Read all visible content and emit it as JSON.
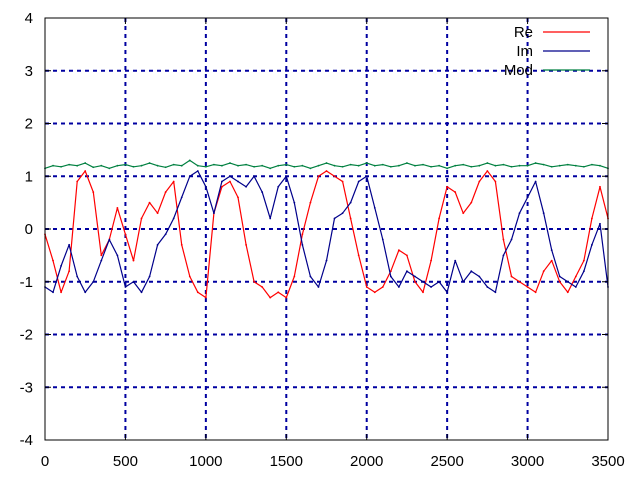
{
  "chart_data": {
    "type": "line",
    "title": "",
    "xlabel": "",
    "ylabel": "",
    "xlim": [
      0,
      3500
    ],
    "ylim": [
      -4,
      4
    ],
    "x_ticks": [
      "0",
      "500",
      "1000",
      "1500",
      "2000",
      "2500",
      "3000",
      "3500"
    ],
    "y_ticks": [
      "-4",
      "-3",
      "-2",
      "-1",
      "0",
      "1",
      "2",
      "3",
      "4"
    ],
    "grid": true,
    "legend_position": "top-right",
    "series": [
      {
        "name": "Re",
        "color": "#ff0000",
        "x": [
          0,
          50,
          100,
          150,
          200,
          250,
          300,
          350,
          400,
          450,
          500,
          550,
          600,
          650,
          700,
          750,
          800,
          850,
          900,
          950,
          1000,
          1050,
          1100,
          1150,
          1200,
          1250,
          1300,
          1350,
          1400,
          1450,
          1500,
          1550,
          1600,
          1650,
          1700,
          1750,
          1800,
          1850,
          1900,
          1950,
          2000,
          2050,
          2100,
          2150,
          2200,
          2250,
          2300,
          2350,
          2400,
          2450,
          2500,
          2550,
          2600,
          2650,
          2700,
          2750,
          2800,
          2850,
          2900,
          2950,
          3000,
          3050,
          3100,
          3150,
          3200,
          3250,
          3300,
          3350,
          3400,
          3450,
          3500
        ],
        "values": [
          -0.1,
          -0.6,
          -1.2,
          -0.8,
          0.9,
          1.1,
          0.7,
          -0.5,
          -0.2,
          0.4,
          -0.1,
          -0.6,
          0.2,
          0.5,
          0.3,
          0.7,
          0.9,
          -0.3,
          -0.9,
          -1.2,
          -1.3,
          0.3,
          0.8,
          0.9,
          0.6,
          -0.3,
          -1.0,
          -1.1,
          -1.3,
          -1.2,
          -1.3,
          -0.9,
          -0.1,
          0.5,
          1.0,
          1.1,
          1.0,
          0.9,
          0.2,
          -0.5,
          -1.1,
          -1.2,
          -1.1,
          -0.8,
          -0.4,
          -0.5,
          -1.0,
          -1.2,
          -0.6,
          0.2,
          0.8,
          0.7,
          0.3,
          0.5,
          0.9,
          1.1,
          0.9,
          -0.2,
          -0.9,
          -1.0,
          -1.1,
          -1.2,
          -0.8,
          -0.6,
          -1.0,
          -1.2,
          -0.9,
          -0.6,
          0.2,
          0.8,
          0.2
        ]
      },
      {
        "name": "Im",
        "color": "#00008b",
        "x": [
          0,
          50,
          100,
          150,
          200,
          250,
          300,
          350,
          400,
          450,
          500,
          550,
          600,
          650,
          700,
          750,
          800,
          850,
          900,
          950,
          1000,
          1050,
          1100,
          1150,
          1200,
          1250,
          1300,
          1350,
          1400,
          1450,
          1500,
          1550,
          1600,
          1650,
          1700,
          1750,
          1800,
          1850,
          1900,
          1950,
          2000,
          2050,
          2100,
          2150,
          2200,
          2250,
          2300,
          2350,
          2400,
          2450,
          2500,
          2550,
          2600,
          2650,
          2700,
          2750,
          2800,
          2850,
          2900,
          2950,
          3000,
          3050,
          3100,
          3150,
          3200,
          3250,
          3300,
          3350,
          3400,
          3450,
          3500
        ],
        "values": [
          -1.1,
          -1.2,
          -0.7,
          -0.3,
          -0.9,
          -1.2,
          -1.0,
          -0.6,
          -0.2,
          -0.5,
          -1.1,
          -1.0,
          -1.2,
          -0.9,
          -0.3,
          -0.1,
          0.2,
          0.6,
          1.0,
          1.1,
          0.8,
          0.3,
          0.9,
          1.0,
          0.9,
          0.8,
          1.0,
          0.7,
          0.2,
          0.8,
          1.0,
          0.5,
          -0.3,
          -0.9,
          -1.1,
          -0.6,
          0.2,
          0.3,
          0.5,
          0.9,
          1.0,
          0.4,
          -0.2,
          -0.9,
          -1.1,
          -0.8,
          -0.9,
          -1.0,
          -1.1,
          -1.0,
          -1.2,
          -0.6,
          -1.0,
          -0.8,
          -0.9,
          -1.1,
          -1.2,
          -0.5,
          -0.2,
          0.3,
          0.6,
          0.9,
          0.3,
          -0.4,
          -0.9,
          -1.0,
          -1.1,
          -0.8,
          -0.3,
          0.1,
          -1.1
        ]
      },
      {
        "name": "Mod",
        "color": "#008040",
        "x": [
          0,
          50,
          100,
          150,
          200,
          250,
          300,
          350,
          400,
          450,
          500,
          550,
          600,
          650,
          700,
          750,
          800,
          850,
          900,
          950,
          1000,
          1050,
          1100,
          1150,
          1200,
          1250,
          1300,
          1350,
          1400,
          1450,
          1500,
          1550,
          1600,
          1650,
          1700,
          1750,
          1800,
          1850,
          1900,
          1950,
          2000,
          2050,
          2100,
          2150,
          2200,
          2250,
          2300,
          2350,
          2400,
          2450,
          2500,
          2550,
          2600,
          2650,
          2700,
          2750,
          2800,
          2850,
          2900,
          2950,
          3000,
          3050,
          3100,
          3150,
          3200,
          3250,
          3300,
          3350,
          3400,
          3450,
          3500
        ],
        "values": [
          1.15,
          1.2,
          1.18,
          1.22,
          1.2,
          1.25,
          1.17,
          1.2,
          1.15,
          1.2,
          1.22,
          1.18,
          1.2,
          1.25,
          1.2,
          1.17,
          1.22,
          1.2,
          1.3,
          1.2,
          1.18,
          1.22,
          1.2,
          1.25,
          1.2,
          1.22,
          1.18,
          1.2,
          1.15,
          1.2,
          1.22,
          1.18,
          1.2,
          1.15,
          1.2,
          1.25,
          1.2,
          1.18,
          1.22,
          1.2,
          1.25,
          1.2,
          1.22,
          1.18,
          1.2,
          1.25,
          1.2,
          1.22,
          1.18,
          1.2,
          1.15,
          1.2,
          1.22,
          1.18,
          1.2,
          1.25,
          1.2,
          1.22,
          1.18,
          1.2,
          1.2,
          1.25,
          1.22,
          1.18,
          1.2,
          1.22,
          1.2,
          1.18,
          1.22,
          1.2,
          1.15
        ]
      }
    ]
  }
}
